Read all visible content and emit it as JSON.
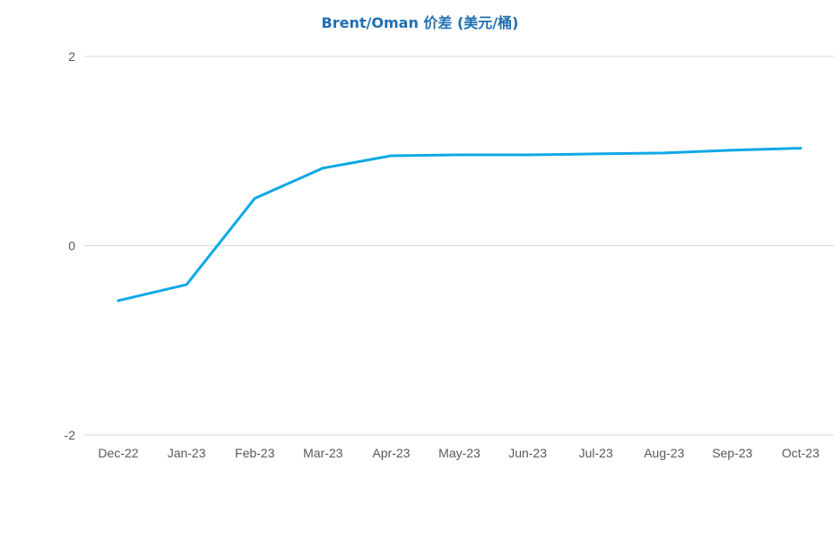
{
  "chart_data": {
    "type": "line",
    "title": "Brent/Oman 价差 (美元/桶)",
    "xlabel": "",
    "ylabel": "",
    "categories": [
      "Dec-22",
      "Jan-23",
      "Feb-23",
      "Mar-23",
      "Apr-23",
      "May-23",
      "Jun-23",
      "Jul-23",
      "Aug-23",
      "Sep-23",
      "Oct-23"
    ],
    "series": [
      {
        "values": [
          -0.58,
          -0.41,
          0.5,
          0.82,
          0.95,
          0.96,
          0.96,
          0.97,
          0.98,
          1.01,
          1.03
        ],
        "color": "#0fa8e6"
      }
    ],
    "ylim": [
      -2,
      2
    ],
    "yticks": [
      "2",
      "0",
      "-2"
    ],
    "grid": true,
    "gridColor": "#d9d9d9",
    "legend": "none"
  }
}
